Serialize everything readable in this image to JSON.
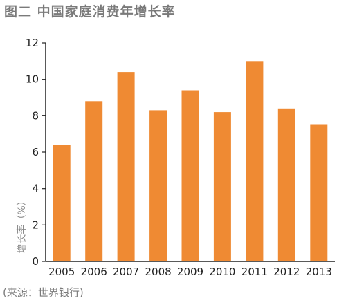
{
  "title": "图二  中国家庭消费年增长率",
  "source": "(来源：世界银行)",
  "colors": {
    "bar": "#EF8A33",
    "axis": "#222222",
    "text": "#7a7a7a"
  },
  "chart_data": {
    "type": "bar",
    "title": "图二  中国家庭消费年增长率",
    "xlabel": "",
    "ylabel": "增长率（%）",
    "categories": [
      "2005",
      "2006",
      "2007",
      "2008",
      "2009",
      "2010",
      "2011",
      "2012",
      "2013"
    ],
    "values": [
      6.4,
      8.8,
      10.4,
      8.3,
      9.4,
      8.2,
      11.0,
      8.4,
      7.5
    ],
    "ylim": [
      0,
      12
    ],
    "yticks": [
      "0",
      "2",
      "4",
      "6",
      "8",
      "10",
      "12"
    ],
    "grid": false,
    "legend": "none"
  }
}
